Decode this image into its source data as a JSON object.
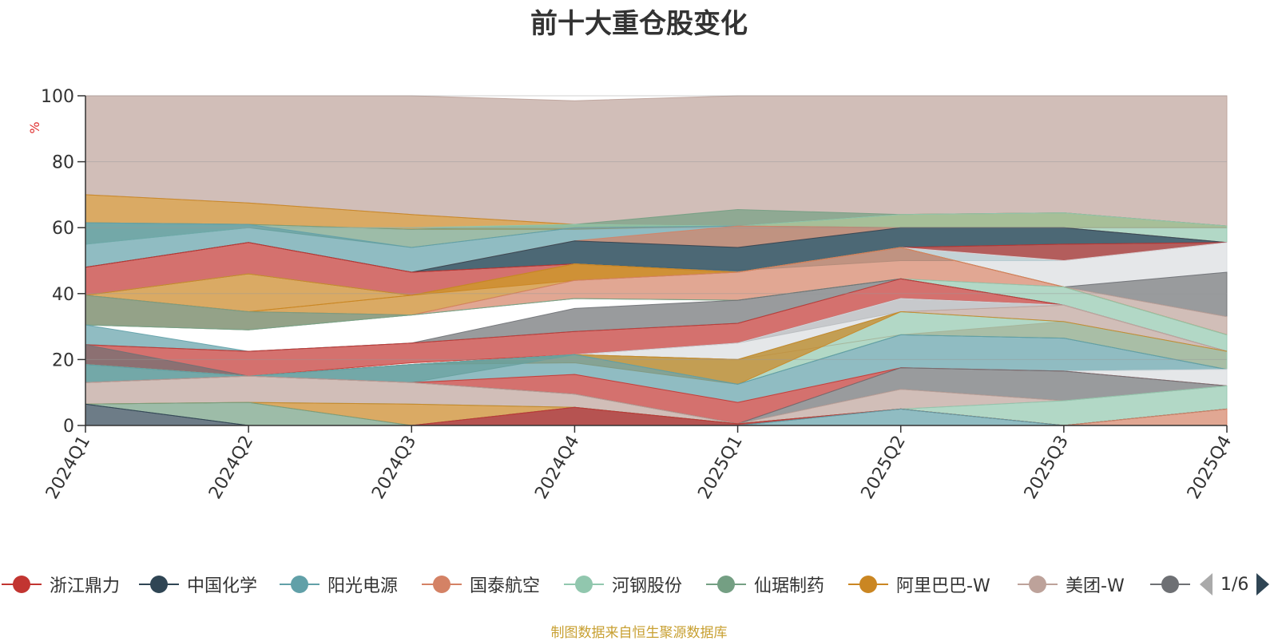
{
  "chart_data": {
    "type": "area",
    "title": "前十大重仓股变化",
    "ylabel": "%",
    "xlabel": "",
    "categories": [
      "2024Q1",
      "2024Q2",
      "2024Q3",
      "2024Q4",
      "2025Q1",
      "2025Q2",
      "2025Q3",
      "2025Q4"
    ],
    "yticks": [
      0,
      20,
      40,
      60,
      80,
      100
    ],
    "ylim": [
      0,
      100
    ],
    "grid": true,
    "legend_position": "bottom",
    "footer": "制图数据来自恒生聚源数据库",
    "page_label": "1/6",
    "legend": [
      {
        "name": "浙江鼎力",
        "color": "#c23531"
      },
      {
        "name": "中国化学",
        "color": "#2f4554"
      },
      {
        "name": "阳光电源",
        "color": "#61a0a8"
      },
      {
        "name": "国泰航空",
        "color": "#d48265"
      },
      {
        "name": "河钢股份",
        "color": "#91c7ae"
      },
      {
        "name": "仙琚制药",
        "color": "#749f83"
      },
      {
        "name": "阿里巴巴-W",
        "color": "#ca8622"
      },
      {
        "name": "美团-W",
        "color": "#bda29a"
      },
      {
        "name": "",
        "color": "#6e7074"
      }
    ],
    "bands": [
      {
        "color": "#bda29a",
        "lower": [
          70,
          67.5,
          64,
          61,
          60.5,
          64,
          64.5,
          60.5
        ],
        "upper": [
          100,
          100,
          100,
          98.5,
          100,
          100,
          100,
          100
        ]
      },
      {
        "color": "#ca8622",
        "lower": [
          61.5,
          61,
          59.5,
          59.5,
          60.5,
          60,
          60,
          60
        ],
        "upper": [
          70,
          67.5,
          64,
          61,
          60.5,
          64,
          64.5,
          60.5
        ]
      },
      {
        "color": "#749f83",
        "lower": [
          55,
          60,
          54,
          60,
          60.5,
          64,
          64.5,
          60.5
        ],
        "upper": [
          61.5,
          61,
          59.5,
          61,
          65.5,
          64,
          64.5,
          60.5
        ]
      },
      {
        "color": "#91c7ae",
        "lower": [
          55,
          60,
          60,
          60,
          60.5,
          60,
          60,
          55.5
        ],
        "upper": [
          55,
          60,
          60,
          61,
          60.5,
          64,
          64.5,
          60.5
        ]
      },
      {
        "color": "#61a0a8",
        "lower": [
          48,
          55.5,
          46.5,
          49,
          47,
          50,
          50,
          55.5
        ],
        "upper": [
          61.5,
          61,
          54,
          60,
          60.5,
          60,
          60,
          55.5
        ]
      },
      {
        "color": "#d48265",
        "lower": [
          48,
          55.5,
          46.5,
          56,
          54,
          60,
          60,
          55.5
        ],
        "upper": [
          48,
          55.5,
          46.5,
          56,
          60.5,
          60,
          60,
          55.5
        ]
      },
      {
        "color": "#2f4554",
        "lower": [
          48,
          55.5,
          46.5,
          49,
          46.5,
          54,
          55,
          55.5
        ],
        "upper": [
          48,
          55.5,
          46.5,
          56,
          54,
          60,
          60,
          55.5
        ]
      },
      {
        "color": "#c23531",
        "lower": [
          39.5,
          46,
          39.5,
          49,
          46.5,
          54,
          50,
          55.5
        ],
        "upper": [
          48,
          55.5,
          46.5,
          49,
          46.5,
          54,
          55,
          55.5
        ]
      },
      {
        "color": "#dadde0",
        "lower": [
          39.5,
          46,
          39.5,
          49,
          46.5,
          54,
          42,
          46.5
        ],
        "upper": [
          39.5,
          46,
          39.5,
          49,
          46.5,
          54,
          50,
          55.5
        ]
      },
      {
        "color": "#6e7074",
        "lower": [
          39.5,
          46,
          39.5,
          49,
          46.5,
          54,
          42,
          33
        ],
        "upper": [
          39.5,
          46,
          39.5,
          49,
          46.5,
          54,
          42,
          46.5
        ]
      },
      {
        "color": "#bda29a",
        "lower": [
          39.5,
          46,
          39.5,
          49,
          46.5,
          54,
          42,
          27.5
        ],
        "upper": [
          39.5,
          46,
          39.5,
          49,
          46.5,
          54,
          42,
          33
        ]
      },
      {
        "color": "#ca8622",
        "lower": [
          39.5,
          34.5,
          39.5,
          44,
          46.5,
          54,
          42,
          27.5
        ],
        "upper": [
          39.5,
          46,
          39.5,
          49,
          46.5,
          54,
          42,
          27.5
        ]
      },
      {
        "color": "#ca8622",
        "lower": [
          39.5,
          34.5,
          33.5,
          44,
          46.5,
          54,
          42,
          27.5
        ],
        "upper": [
          39.5,
          34.5,
          39.5,
          49,
          46.5,
          54,
          42,
          27.5
        ]
      },
      {
        "color": "#d48265",
        "lower": [
          30.5,
          29,
          33.5,
          38.5,
          38,
          44.5,
          42,
          27.5
        ],
        "upper": [
          39.5,
          34.5,
          33.5,
          44,
          46.5,
          54,
          42,
          27.5
        ]
      },
      {
        "color": "#91c7ae",
        "lower": [
          30.5,
          29,
          33.5,
          38.5,
          38,
          44.5,
          36.5,
          22.5
        ],
        "upper": [
          30.5,
          29,
          33.5,
          38.5,
          38,
          44.5,
          42,
          27.5
        ]
      },
      {
        "color": "#749f83",
        "lower": [
          30.5,
          29,
          33.5,
          38.5,
          38,
          44.5,
          36.5,
          22.5
        ],
        "upper": [
          39.5,
          34.5,
          33.5,
          38.5,
          38,
          44.5,
          36.5,
          22.5
        ]
      },
      {
        "color": "#6e7074",
        "lower": [
          24.5,
          22.5,
          25,
          28.5,
          31,
          44.5,
          36.5,
          22.5
        ],
        "upper": [
          24.5,
          22.5,
          25,
          35.5,
          38,
          44.5,
          36.5,
          22.5
        ]
      },
      {
        "color": "#61a0a8",
        "lower": [
          24.5,
          22.5,
          25,
          28.5,
          31,
          44.5,
          36.5,
          22.5
        ],
        "upper": [
          30.5,
          22.5,
          25,
          28.5,
          31,
          44.5,
          36.5,
          22.5
        ]
      },
      {
        "color": "#c23531",
        "lower": [
          18.5,
          15,
          19,
          21.5,
          25,
          38.5,
          36.5,
          22.5
        ],
        "upper": [
          24.5,
          22.5,
          25,
          28.5,
          31,
          44.5,
          36.5,
          22.5
        ]
      },
      {
        "color": "#6e7074",
        "lower": [
          18.5,
          15,
          18.5,
          21.5,
          25,
          34.5,
          36.5,
          22.5
        ],
        "upper": [
          24.5,
          15,
          18.5,
          21.5,
          25,
          38.5,
          36.5,
          22.5
        ]
      },
      {
        "color": "#dadde0",
        "lower": [
          18.5,
          15,
          18.5,
          21.5,
          20,
          34.5,
          36.5,
          22.5
        ],
        "upper": [
          18.5,
          15,
          18.5,
          21.5,
          25,
          38.5,
          36.5,
          22.5
        ]
      },
      {
        "color": "#bda29a",
        "lower": [
          18.5,
          15,
          18.5,
          21.5,
          20,
          34.5,
          31.5,
          22.5
        ],
        "upper": [
          18.5,
          15,
          18.5,
          21.5,
          20,
          34.5,
          36.5,
          22.5
        ]
      },
      {
        "color": "#d48265",
        "lower": [
          18.5,
          15,
          18.5,
          21.5,
          20,
          27.5,
          26.5,
          17
        ],
        "upper": [
          18.5,
          15,
          18.5,
          21.5,
          20,
          27.5,
          31.5,
          22.5
        ]
      },
      {
        "color": "#91c7ae",
        "lower": [
          18.5,
          15,
          18.5,
          21.5,
          12.5,
          27.5,
          26.5,
          17
        ],
        "upper": [
          18.5,
          15,
          18.5,
          21.5,
          20,
          34.5,
          31.5,
          22.5
        ]
      },
      {
        "color": "#ca8622",
        "lower": [
          18.5,
          15,
          18.5,
          19,
          12.5,
          34.5,
          31.5,
          22.5
        ],
        "upper": [
          18.5,
          15,
          18.5,
          21.5,
          20,
          34.5,
          31.5,
          22.5
        ]
      },
      {
        "color": "#749f83",
        "lower": [
          13,
          15,
          13,
          21.5,
          12.5,
          27.5,
          26.5,
          17
        ],
        "upper": [
          18.5,
          15,
          18.5,
          21.5,
          12.5,
          27.5,
          26.5,
          17
        ]
      },
      {
        "color": "#61a0a8",
        "lower": [
          13,
          15,
          13,
          15.5,
          7,
          17.5,
          16.5,
          17
        ],
        "upper": [
          18.5,
          15,
          18.5,
          21.5,
          12.5,
          27.5,
          26.5,
          17
        ]
      },
      {
        "color": "#dadde0",
        "lower": [
          13,
          15,
          13,
          15.5,
          7,
          17.5,
          16.5,
          12
        ],
        "upper": [
          13,
          15,
          13,
          15.5,
          7,
          17.5,
          16.5,
          17
        ]
      },
      {
        "color": "#c23531",
        "lower": [
          13,
          15,
          13,
          9.5,
          0.5,
          17.5,
          16.5,
          12
        ],
        "upper": [
          13,
          15,
          13,
          15.5,
          7,
          17.5,
          16.5,
          12
        ]
      },
      {
        "color": "#6e7074",
        "lower": [
          13,
          15,
          13,
          9.5,
          0.5,
          11,
          7.5,
          12
        ],
        "upper": [
          13,
          15,
          13,
          9.5,
          0.5,
          17.5,
          16.5,
          12
        ]
      },
      {
        "color": "#bda29a",
        "lower": [
          6.5,
          7,
          6.5,
          5.5,
          0.5,
          5,
          7.5,
          12
        ],
        "upper": [
          13,
          15,
          13,
          9.5,
          0.5,
          11,
          7.5,
          12
        ]
      },
      {
        "color": "#91c7ae",
        "lower": [
          6.5,
          7,
          6.5,
          5.5,
          0.5,
          5,
          0,
          5
        ],
        "upper": [
          6.5,
          7,
          6.5,
          5.5,
          0.5,
          5,
          7.5,
          12
        ]
      },
      {
        "color": "#ca8622",
        "lower": [
          6.5,
          7,
          0,
          5.5,
          0.5,
          5,
          0,
          5
        ],
        "upper": [
          6.5,
          7,
          6.5,
          5.5,
          0.5,
          5,
          0,
          5
        ]
      },
      {
        "color": "#749f83",
        "lower": [
          6.5,
          0,
          0,
          5.5,
          0.5,
          5,
          0,
          5
        ],
        "upper": [
          6.5,
          7,
          0,
          5.5,
          0.5,
          5,
          0,
          5
        ]
      },
      {
        "color": "#6e7074",
        "lower": [
          6.5,
          0,
          0,
          0,
          0,
          5,
          0,
          5
        ],
        "upper": [
          6.5,
          0,
          0,
          5.5,
          0.5,
          5,
          0,
          5
        ]
      },
      {
        "color": "#c23531",
        "lower": [
          0,
          0,
          0,
          0,
          0,
          5,
          0,
          5
        ],
        "upper": [
          0,
          0,
          0,
          5.5,
          0.5,
          5,
          0,
          5
        ]
      },
      {
        "color": "#61a0a8",
        "lower": [
          0,
          0,
          0,
          0,
          0,
          0,
          0,
          5
        ],
        "upper": [
          0,
          0,
          0,
          0,
          0,
          5,
          0,
          5
        ]
      },
      {
        "color": "#d48265",
        "lower": [
          0,
          0,
          0,
          0,
          0,
          0,
          0,
          0
        ],
        "upper": [
          0,
          0,
          0,
          0,
          0,
          0,
          0,
          5
        ]
      },
      {
        "color": "#2f4554",
        "lower": [
          0,
          0,
          0,
          0,
          0,
          0,
          0,
          0
        ],
        "upper": [
          6.5,
          0,
          0,
          0,
          0,
          0,
          0,
          0
        ]
      }
    ]
  }
}
